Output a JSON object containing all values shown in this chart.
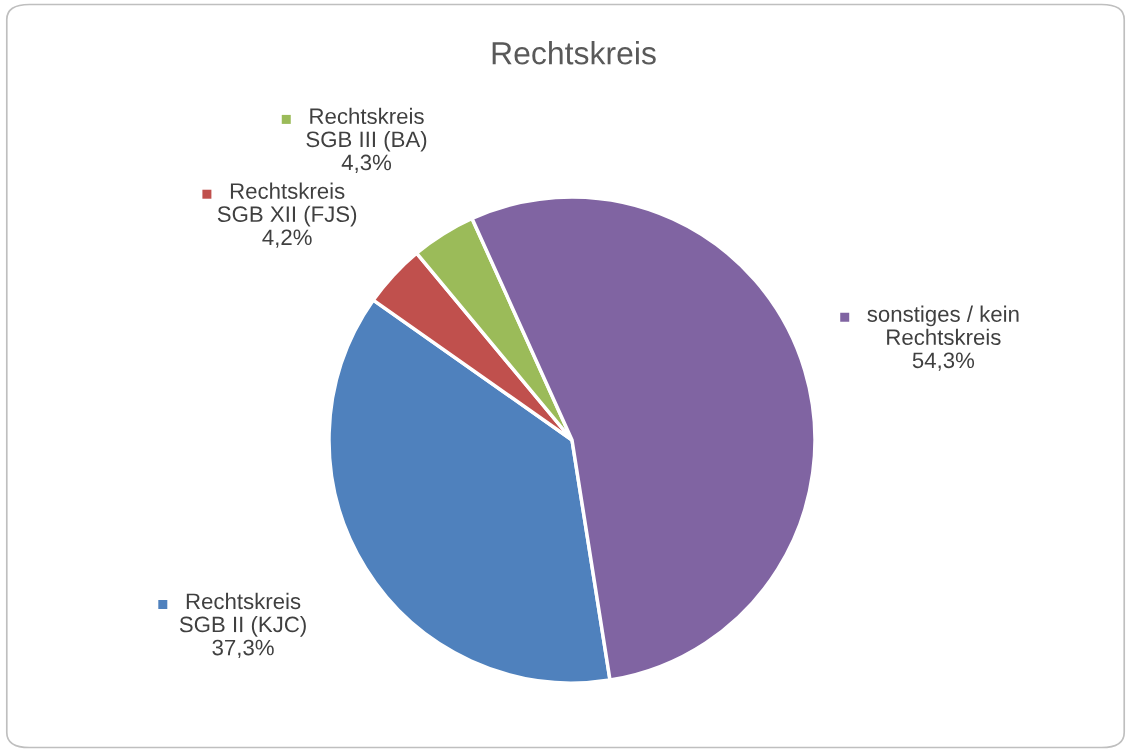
{
  "chart_data": {
    "type": "pie",
    "title": "Rechtskreis",
    "categories": [
      "Rechtskreis\nSGB II (KJC)",
      "Rechtskreis\nSGB XII (FJS)",
      "Rechtskreis\nSGB III (BA)",
      "sonstiges / kein\nRechtskreis"
    ],
    "values": [
      37.3,
      4.2,
      4.3,
      54.3
    ],
    "value_labels": [
      "37,3%",
      "4,2%",
      "4,3%",
      "54,3%"
    ],
    "colors": [
      "#4f81bd",
      "#c0504d",
      "#9bbb59",
      "#8064a2"
    ],
    "legend": true
  }
}
